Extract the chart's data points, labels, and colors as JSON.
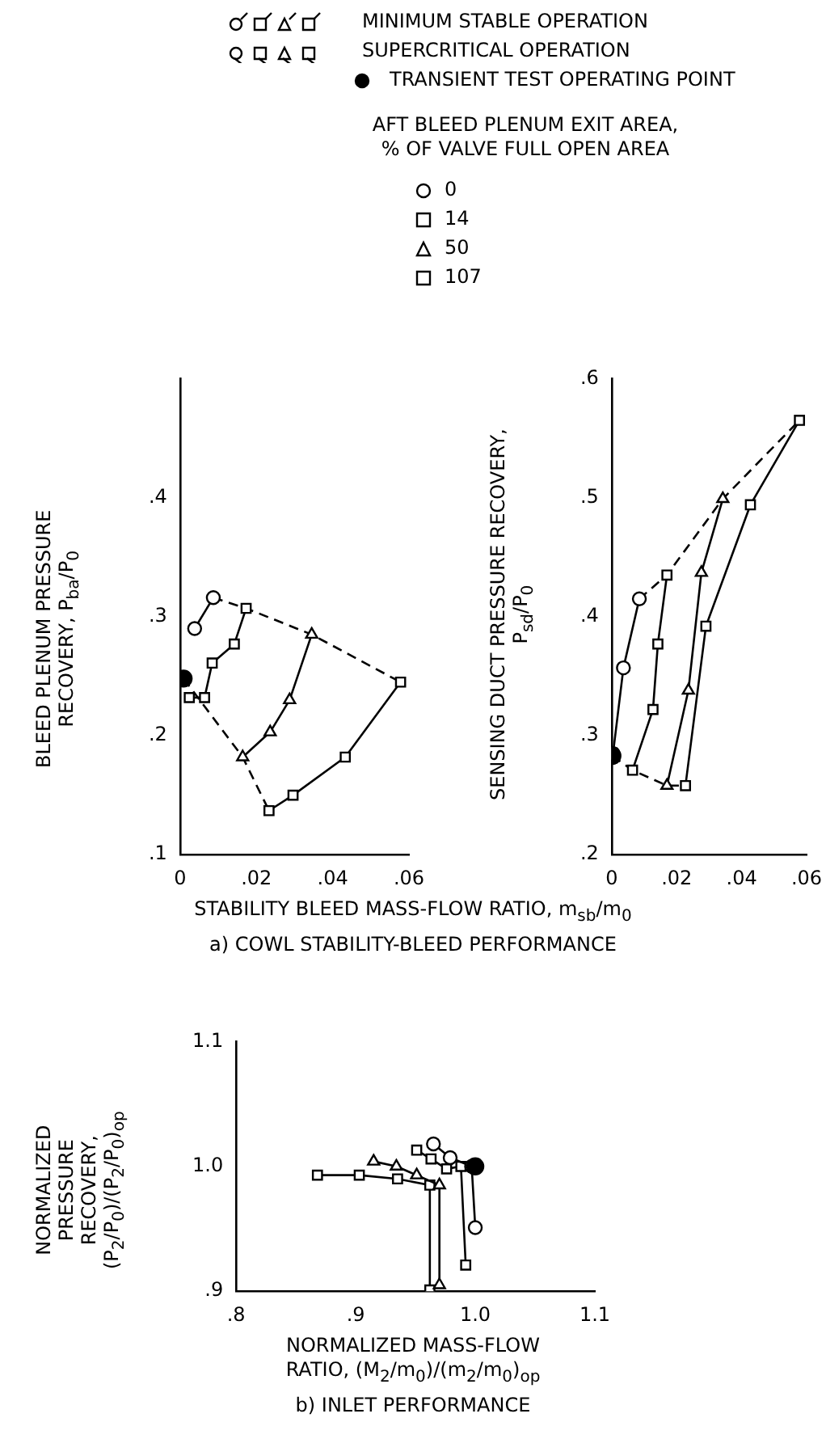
{
  "chart_data": [
    {
      "type": "line",
      "ylabel": "BLEED PLENUM PRESSURE\nRECOVERY, P$_{ba}$/P$_{0}$",
      "legend": "top",
      "legend_title": "AFT BLEED PLENUM EXIT AREA,\n% OF VALVE FULL OPEN AREA",
      "annotations": [
        "MINIMUM STABLE OPERATION",
        "SUPERCRITICAL OPERATION"
      ],
      "xlim": [
        0,
        0.06
      ],
      "xticks": [
        0,
        {
          "value": 0.02,
          "label": ".02"
        },
        {
          "value": 0.04,
          "label": ".04"
        },
        {
          "value": 0.06,
          "label": ".06"
        }
      ],
      "ylim": [
        0.1,
        0.5
      ],
      "yticks": [
        {
          "value": 0.1,
          "label": ".1"
        },
        {
          "value": 0.2,
          "label": ".2"
        },
        {
          "value": 0.3,
          "label": ".3"
        },
        {
          "value": 0.4,
          "label": ".4"
        }
      ],
      "series": [
        {
          "name": "0",
          "color": "#000000",
          "marker": "circle",
          "x": [
            0.0038,
            0.0087
          ],
          "values": [
            0.29,
            0.316
          ]
        },
        {
          "name": "14",
          "color": "#000000",
          "marker": "square",
          "x": [
            0.0024,
            0.0064,
            0.0084,
            0.0142,
            0.0173
          ],
          "values": [
            0.232,
            0.232,
            0.261,
            0.277,
            0.307
          ]
        },
        {
          "name": "50",
          "color": "#000000",
          "marker": "triangle",
          "x": [
            0.0164,
            0.0236,
            0.0287,
            0.0345
          ],
          "values": [
            0.182,
            0.203,
            0.23,
            0.285
          ]
        },
        {
          "name": "107",
          "color": "#000000",
          "marker": "square",
          "x": [
            0.0233,
            0.0296,
            0.0433,
            0.0578
          ],
          "values": [
            0.137,
            0.15,
            0.182,
            0.245
          ]
        },
        {
          "name": "TRANSIENT TEST OPERATING POINT",
          "type": "scatter",
          "color": "#000000",
          "marker": "circle",
          "x": [
            0.0009
          ],
          "values": [
            0.248
          ]
        },
        {
          "type": "line",
          "color": "#000000",
          "marker": "none",
          "line_style": "dashed",
          "x": [
            0.0087,
            0.0173,
            0.0345,
            0.0578
          ],
          "values": [
            0.316,
            0.307,
            0.285,
            0.245
          ]
        },
        {
          "type": "line",
          "color": "#000000",
          "marker": "none",
          "line_style": "dashed",
          "x": [
            0.0009,
            0.0164,
            0.0233
          ],
          "values": [
            0.248,
            0.182,
            0.137
          ]
        }
      ]
    },
    {
      "type": "line",
      "ylabel": "SENSING DUCT PRESSURE RECOVERY,\nP$_{sd}$/P$_{0}$",
      "xlabel": "STABILITY BLEED MASS-FLOW RATIO, m$_{sb}$/m$_{0}$",
      "annotations": [
        "a) COWL STABILITY-BLEED PERFORMANCE"
      ],
      "xlim": [
        0,
        0.06
      ],
      "xticks": [
        0,
        {
          "value": 0.02,
          "label": ".02"
        },
        {
          "value": 0.04,
          "label": ".04"
        },
        {
          "value": 0.06,
          "label": ".06"
        }
      ],
      "ylim": [
        0.2,
        0.6
      ],
      "yticks": [
        {
          "value": 0.2,
          "label": ".2"
        },
        {
          "value": 0.3,
          "label": ".3"
        },
        {
          "value": 0.4,
          "label": ".4"
        },
        {
          "value": 0.5,
          "label": ".5"
        },
        {
          "value": 0.6,
          "label": ".6"
        }
      ],
      "series": [
        {
          "color": "#000000",
          "marker": "circle",
          "x": [
            0.0004,
            0.0036,
            0.0085
          ],
          "values": [
            0.285,
            0.357,
            0.415
          ]
        },
        {
          "color": "#000000",
          "marker": "square",
          "x": [
            0.0064,
            0.0127,
            0.0142,
            0.017
          ],
          "values": [
            0.271,
            0.322,
            0.377,
            0.435
          ]
        },
        {
          "color": "#000000",
          "marker": "triangle",
          "x": [
            0.017,
            0.0236,
            0.0276,
            0.0342
          ],
          "values": [
            0.258,
            0.338,
            0.437,
            0.499
          ]
        },
        {
          "color": "#000000",
          "marker": "square",
          "x": [
            0.0227,
            0.029,
            0.0427,
            0.0578
          ],
          "values": [
            0.258,
            0.392,
            0.494,
            0.565
          ]
        },
        {
          "type": "scatter",
          "color": "#000000",
          "marker": "circle",
          "x": [
            0.0002
          ],
          "values": [
            0.283
          ]
        },
        {
          "type": "line",
          "color": "#000000",
          "marker": "none",
          "line_style": "dashed",
          "x": [
            0.0085,
            0.017,
            0.0342,
            0.0578
          ],
          "values": [
            0.415,
            0.435,
            0.499,
            0.565
          ]
        },
        {
          "type": "line",
          "color": "#000000",
          "marker": "none",
          "line_style": "dashed",
          "x": [
            0.0002,
            0.0064,
            0.017,
            0.0227
          ],
          "values": [
            0.283,
            0.271,
            0.258,
            0.258
          ]
        }
      ]
    },
    {
      "type": "line",
      "ylabel": "NORMALIZED\nPRESSURE\nRECOVERY,\n(P$_{2}$/P$_{0}$)/(P$_{2}$/P$_{0}$)$_{op}$",
      "xlabel": "NORMALIZED MASS-FLOW\nRATIO, (M$_{2}$/m$_{0}$)/(m$_{2}$/m$_{0}$)$_{op}$",
      "annotations": [
        "b) INLET PERFORMANCE"
      ],
      "xlim": [
        0.8,
        1.1
      ],
      "xticks": [
        {
          "value": 0.8,
          "label": ".8"
        },
        {
          "value": 0.9,
          "label": ".9"
        },
        {
          "value": 1.0,
          "label": "1.0"
        },
        {
          "value": 1.1,
          "label": "1.1"
        }
      ],
      "ylim": [
        0.9,
        1.1
      ],
      "yticks": [
        {
          "value": 0.9,
          "label": ".9"
        },
        {
          "value": 1.0,
          "label": "1.0"
        },
        {
          "value": 1.1,
          "label": "1.1"
        }
      ],
      "series": [
        {
          "color": "#000000",
          "marker": "circle",
          "x": [
            0.965,
            0.979,
            0.997,
            1.0
          ],
          "values": [
            1.018,
            1.007,
            1.0,
            0.951
          ]
        },
        {
          "color": "#000000",
          "marker": "square",
          "x": [
            0.951,
            0.963,
            0.976,
            0.988,
            0.992
          ],
          "values": [
            1.013,
            1.006,
            0.998,
            1.0,
            0.921
          ]
        },
        {
          "color": "#000000",
          "marker": "triangle",
          "x": [
            0.915,
            0.934,
            0.951,
            0.97,
            0.97
          ],
          "values": [
            1.004,
            1.0,
            0.993,
            0.985,
            0.905
          ]
        },
        {
          "color": "#000000",
          "marker": "square",
          "x": [
            0.868,
            0.903,
            0.935,
            0.962,
            0.962
          ],
          "values": [
            0.993,
            0.993,
            0.99,
            0.985,
            0.901
          ]
        },
        {
          "type": "scatter",
          "color": "#000000",
          "marker": "circle",
          "x": [
            1.0
          ],
          "values": [
            1.0
          ]
        }
      ]
    }
  ]
}
